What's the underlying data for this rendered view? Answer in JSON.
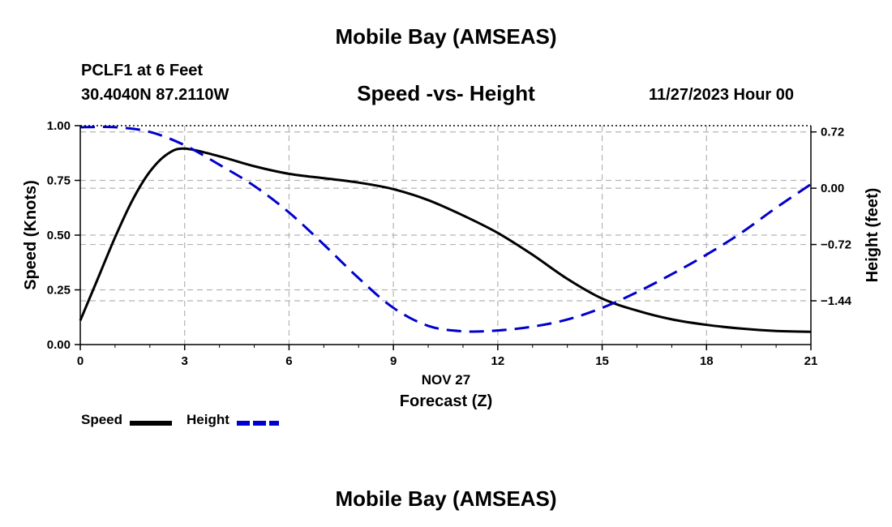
{
  "header": {
    "title": "Mobile Bay (AMSEAS)",
    "station": "PCLF1 at 6 Feet",
    "coords": "30.4040N  87.2110W",
    "subtitle": "Speed -vs- Height",
    "datetime": "11/27/2023 Hour 00"
  },
  "footer": {
    "title": "Mobile Bay (AMSEAS)"
  },
  "legend": [
    {
      "label": "Speed",
      "color": "#000000",
      "style": "solid"
    },
    {
      "label": "Height",
      "color": "#0000cc",
      "style": "dashed"
    }
  ],
  "chart_data": {
    "type": "line",
    "title": "Speed -vs- Height",
    "xlabel": "Forecast (Z)",
    "xlabel_date": "NOV 27",
    "xlim": [
      0,
      21
    ],
    "x_ticks": [
      0,
      3,
      6,
      9,
      12,
      15,
      18,
      21
    ],
    "ylabel_left": "Speed (Knots)",
    "ylim_left": [
      0,
      1.0
    ],
    "y_ticks_left": [
      "0.00",
      "0.25",
      "0.50",
      "0.75",
      "1.00"
    ],
    "ylabel_right": "Height (feet)",
    "ylim_right": [
      -2.0,
      0.8
    ],
    "y_ticks_right": [
      "0.72",
      "0.00",
      "−0.72",
      "−1.44"
    ],
    "grid": true,
    "series": [
      {
        "name": "Speed",
        "axis": "left",
        "color": "#000000",
        "dash": "solid",
        "x": [
          0,
          0.5,
          1,
          1.5,
          2,
          2.5,
          3,
          4,
          5,
          6,
          7,
          8,
          9,
          10,
          11,
          12,
          13,
          14,
          15,
          16,
          17,
          18,
          19,
          20,
          21
        ],
        "values": [
          0.11,
          0.3,
          0.49,
          0.66,
          0.79,
          0.87,
          0.895,
          0.86,
          0.815,
          0.78,
          0.76,
          0.74,
          0.71,
          0.66,
          0.59,
          0.51,
          0.41,
          0.3,
          0.21,
          0.155,
          0.115,
          0.09,
          0.073,
          0.062,
          0.058
        ]
      },
      {
        "name": "Height",
        "axis": "right",
        "color": "#0000cc",
        "dash": "dashed",
        "x": [
          0,
          1,
          2,
          3,
          4,
          5,
          6,
          7,
          8,
          9,
          10,
          11,
          12,
          13,
          14,
          15,
          16,
          17,
          18,
          19,
          20,
          21
        ],
        "values": [
          0.78,
          0.78,
          0.72,
          0.55,
          0.3,
          0.03,
          -0.31,
          -0.72,
          -1.15,
          -1.53,
          -1.76,
          -1.83,
          -1.82,
          -1.77,
          -1.68,
          -1.53,
          -1.33,
          -1.1,
          -0.85,
          -0.57,
          -0.25,
          0.05
        ]
      }
    ]
  }
}
